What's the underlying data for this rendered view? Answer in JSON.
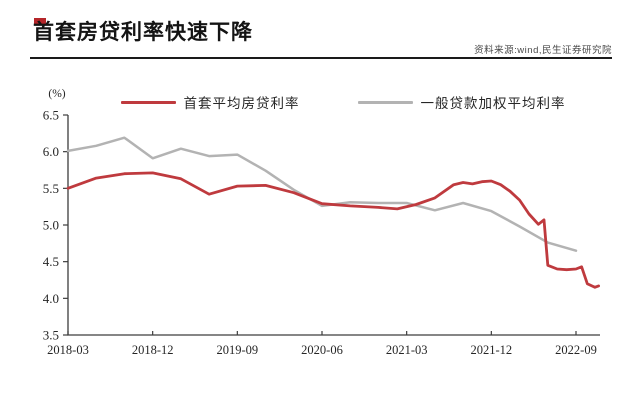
{
  "header": {
    "title": "首套房贷利率快速下降",
    "source": "资料来源:wind,民生证券研究院",
    "accent_color": "#b5262a"
  },
  "legend": {
    "items": [
      {
        "label": "首套平均房贷利率",
        "color": "#bf3a3e"
      },
      {
        "label": "一般贷款加权平均利率",
        "color": "#b3b3b3"
      }
    ]
  },
  "chart_data": {
    "type": "line",
    "title": "首套房贷利率快速下降",
    "xlabel": "",
    "ylabel": "(%)",
    "ylim": [
      3.5,
      6.5
    ],
    "y_ticks": [
      6.5,
      6.0,
      5.5,
      5.0,
      4.5,
      4.0,
      3.5
    ],
    "x_unit": "months since 2018-03",
    "x_ticks": [
      {
        "m": 0,
        "label": "2018-03"
      },
      {
        "m": 9,
        "label": "2018-12"
      },
      {
        "m": 18,
        "label": "2019-09"
      },
      {
        "m": 27,
        "label": "2020-06"
      },
      {
        "m": 36,
        "label": "2021-03"
      },
      {
        "m": 45,
        "label": "2021-12"
      },
      {
        "m": 54,
        "label": "2022-09"
      }
    ],
    "grid": false,
    "legend_position": "top",
    "series": [
      {
        "name": "首套平均房贷利率",
        "color": "#bf3a3e",
        "width": 2.8,
        "points": [
          [
            0,
            5.5
          ],
          [
            3,
            5.64
          ],
          [
            6,
            5.7
          ],
          [
            9,
            5.71
          ],
          [
            12,
            5.63
          ],
          [
            15,
            5.42
          ],
          [
            18,
            5.53
          ],
          [
            21,
            5.54
          ],
          [
            24,
            5.44
          ],
          [
            27,
            5.29
          ],
          [
            30,
            5.26
          ],
          [
            33,
            5.24
          ],
          [
            35,
            5.22
          ],
          [
            37,
            5.28
          ],
          [
            39,
            5.37
          ],
          [
            41,
            5.55
          ],
          [
            42,
            5.58
          ],
          [
            43,
            5.56
          ],
          [
            44,
            5.59
          ],
          [
            45,
            5.6
          ],
          [
            46,
            5.55
          ],
          [
            47,
            5.46
          ],
          [
            48,
            5.34
          ],
          [
            49,
            5.15
          ],
          [
            50,
            5.01
          ],
          [
            50.6,
            5.07
          ],
          [
            51,
            4.45
          ],
          [
            52,
            4.4
          ],
          [
            53,
            4.39
          ],
          [
            54,
            4.4
          ],
          [
            54.6,
            4.43
          ],
          [
            55.2,
            4.2
          ],
          [
            56,
            4.15
          ],
          [
            56.4,
            4.17
          ]
        ]
      },
      {
        "name": "一般贷款加权平均利率",
        "color": "#b3b3b3",
        "width": 2.5,
        "points": [
          [
            0,
            6.01
          ],
          [
            3,
            6.08
          ],
          [
            6,
            6.19
          ],
          [
            9,
            5.91
          ],
          [
            12,
            6.04
          ],
          [
            15,
            5.94
          ],
          [
            18,
            5.96
          ],
          [
            21,
            5.74
          ],
          [
            24,
            5.48
          ],
          [
            27,
            5.26
          ],
          [
            30,
            5.31
          ],
          [
            33,
            5.3
          ],
          [
            36,
            5.3
          ],
          [
            39,
            5.2
          ],
          [
            42,
            5.3
          ],
          [
            45,
            5.19
          ],
          [
            48,
            4.98
          ],
          [
            51,
            4.76
          ],
          [
            54,
            4.65
          ]
        ]
      }
    ]
  }
}
